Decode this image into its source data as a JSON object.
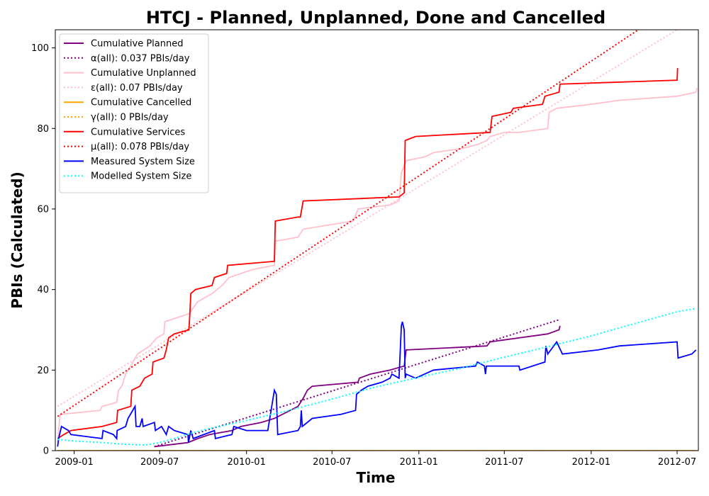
{
  "chart_data": {
    "type": "line",
    "title": "HTCJ - Planned, Unplanned, Done  and Cancelled",
    "xlabel": "Time",
    "ylabel": "PBIs (Calculated)",
    "xlim": [
      "2008-11-22",
      "2012-08-15"
    ],
    "ylim": [
      0,
      104.5
    ],
    "x_tick_labels": [
      "2009-01",
      "2009-07",
      "2010-01",
      "2010-07",
      "2011-01",
      "2011-07",
      "2012-01",
      "2012-07"
    ],
    "y_tick_labels": [
      "0",
      "20",
      "40",
      "60",
      "80",
      "100"
    ],
    "y_ticks": [
      0,
      20,
      40,
      60,
      80,
      100
    ],
    "grid": false,
    "legend_position": "upper-left",
    "series": [
      {
        "name": "Cumulative Planned",
        "color": "#800080",
        "style": "solid",
        "points": [
          [
            "2009-06-20",
            1
          ],
          [
            "2009-08-30",
            2
          ],
          [
            "2009-09-20",
            3
          ],
          [
            "2009-10-15",
            4
          ],
          [
            "2009-12-01",
            5
          ],
          [
            "2009-12-20",
            6
          ],
          [
            "2010-02-01",
            7
          ],
          [
            "2010-03-01",
            8
          ],
          [
            "2010-04-20",
            11
          ],
          [
            "2010-05-01",
            13
          ],
          [
            "2010-05-10",
            15
          ],
          [
            "2010-05-20",
            16
          ],
          [
            "2010-08-25",
            17
          ],
          [
            "2010-08-28",
            18
          ],
          [
            "2010-09-20",
            19
          ],
          [
            "2010-11-01",
            20
          ],
          [
            "2010-12-01",
            21
          ],
          [
            "2010-12-05",
            25
          ],
          [
            "2011-05-25",
            26
          ],
          [
            "2011-06-01",
            27
          ],
          [
            "2011-10-01",
            29
          ],
          [
            "2011-10-25",
            30
          ],
          [
            "2011-10-27",
            31
          ]
        ]
      },
      {
        "name": "α(all): 0.037 PBIs/day",
        "color": "#800080",
        "style": "dotted",
        "points": [
          [
            "2009-06-20",
            1
          ],
          [
            "2011-10-25",
            32.5
          ]
        ]
      },
      {
        "name": "Cumulative Unplanned",
        "color": "#ffc0cb",
        "style": "solid",
        "points": [
          [
            "2008-11-27",
            2
          ],
          [
            "2008-12-02",
            9
          ],
          [
            "2009-02-25",
            10
          ],
          [
            "2009-03-01",
            11
          ],
          [
            "2009-04-01",
            12
          ],
          [
            "2009-04-05",
            15
          ],
          [
            "2009-04-12",
            16
          ],
          [
            "2009-04-20",
            19
          ],
          [
            "2009-05-01",
            21
          ],
          [
            "2009-05-15",
            24
          ],
          [
            "2009-06-10",
            26
          ],
          [
            "2009-06-25",
            28
          ],
          [
            "2009-07-10",
            29
          ],
          [
            "2009-07-12",
            32
          ],
          [
            "2009-09-01",
            34
          ],
          [
            "2009-09-20",
            37
          ],
          [
            "2009-10-20",
            39
          ],
          [
            "2009-11-10",
            41
          ],
          [
            "2009-11-25",
            43
          ],
          [
            "2010-01-15",
            45
          ],
          [
            "2010-03-01",
            46
          ],
          [
            "2010-03-03",
            52
          ],
          [
            "2010-04-20",
            53
          ],
          [
            "2010-05-01",
            55
          ],
          [
            "2010-08-15",
            57
          ],
          [
            "2010-08-25",
            60
          ],
          [
            "2010-11-01",
            61
          ],
          [
            "2010-11-20",
            62
          ],
          [
            "2010-11-25",
            69
          ],
          [
            "2010-12-05",
            72
          ],
          [
            "2011-01-15",
            73
          ],
          [
            "2011-02-01",
            74
          ],
          [
            "2011-04-01",
            75
          ],
          [
            "2011-05-05",
            76
          ],
          [
            "2011-05-25",
            77
          ],
          [
            "2011-06-01",
            78
          ],
          [
            "2011-07-01",
            79
          ],
          [
            "2011-08-01",
            79
          ],
          [
            "2011-10-01",
            80
          ],
          [
            "2011-10-04",
            84
          ],
          [
            "2011-10-20",
            85
          ],
          [
            "2012-01-01",
            86
          ],
          [
            "2012-03-01",
            87
          ],
          [
            "2012-07-01",
            88
          ],
          [
            "2012-08-10",
            89
          ],
          [
            "2012-08-12",
            90
          ]
        ]
      },
      {
        "name": "ε(all): 0.07 PBIs/day",
        "color": "#ffc0cb",
        "style": "dotted",
        "points": [
          [
            "2008-11-27",
            11
          ],
          [
            "2012-07-01",
            104.5
          ]
        ]
      },
      {
        "name": "Cumulative Cancelled",
        "color": "#ffa500",
        "style": "solid",
        "points": [
          [
            "2008-11-27",
            0
          ],
          [
            "2012-08-12",
            0
          ]
        ]
      },
      {
        "name": "γ(all): 0 PBIs/day",
        "color": "#ffa500",
        "style": "dotted",
        "points": [
          [
            "2008-11-27",
            0
          ],
          [
            "2012-08-12",
            0
          ]
        ]
      },
      {
        "name": "Cumulative Services",
        "color": "#ff0000",
        "style": "solid",
        "points": [
          [
            "2008-11-27",
            3
          ],
          [
            "2008-12-10",
            4
          ],
          [
            "2008-12-25",
            5
          ],
          [
            "2009-03-01",
            6
          ],
          [
            "2009-04-01",
            7
          ],
          [
            "2009-04-03",
            10
          ],
          [
            "2009-05-01",
            11
          ],
          [
            "2009-05-03",
            15
          ],
          [
            "2009-05-20",
            16
          ],
          [
            "2009-05-30",
            18
          ],
          [
            "2009-06-15",
            19
          ],
          [
            "2009-06-17",
            22
          ],
          [
            "2009-07-10",
            23
          ],
          [
            "2009-07-15",
            25
          ],
          [
            "2009-07-20",
            28
          ],
          [
            "2009-08-01",
            29
          ],
          [
            "2009-09-01",
            30
          ],
          [
            "2009-09-03",
            34
          ],
          [
            "2009-09-05",
            39
          ],
          [
            "2009-09-15",
            40
          ],
          [
            "2009-10-20",
            41
          ],
          [
            "2009-10-25",
            43
          ],
          [
            "2009-11-20",
            44
          ],
          [
            "2009-11-22",
            46
          ],
          [
            "2010-03-01",
            47
          ],
          [
            "2010-03-03",
            57
          ],
          [
            "2010-04-20",
            58
          ],
          [
            "2010-04-25",
            58
          ],
          [
            "2010-05-01",
            62
          ],
          [
            "2010-11-20",
            63
          ],
          [
            "2010-12-01",
            64
          ],
          [
            "2010-12-03",
            77
          ],
          [
            "2010-12-25",
            78
          ],
          [
            "2011-06-01",
            79
          ],
          [
            "2011-06-05",
            83
          ],
          [
            "2011-07-15",
            84
          ],
          [
            "2011-07-20",
            85
          ],
          [
            "2011-09-20",
            86
          ],
          [
            "2011-09-25",
            88
          ],
          [
            "2011-10-25",
            89
          ],
          [
            "2011-10-27",
            91
          ],
          [
            "2012-07-01",
            92
          ],
          [
            "2012-07-02",
            95
          ]
        ]
      },
      {
        "name": "μ(all): 0.078 PBIs/day",
        "color": "#ff0000",
        "style": "dotted",
        "points": [
          [
            "2008-11-27",
            8.5
          ],
          [
            "2012-04-10",
            104.5
          ]
        ]
      },
      {
        "name": "Measured System Size",
        "color": "#0000ff",
        "style": "solid",
        "points": [
          [
            "2008-11-27",
            1
          ],
          [
            "2008-11-29",
            3
          ],
          [
            "2008-12-05",
            6
          ],
          [
            "2008-12-20",
            5
          ],
          [
            "2008-12-25",
            4
          ],
          [
            "2009-03-01",
            3
          ],
          [
            "2009-03-03",
            5
          ],
          [
            "2009-03-25",
            4
          ],
          [
            "2009-04-01",
            3
          ],
          [
            "2009-04-02",
            5
          ],
          [
            "2009-04-20",
            6
          ],
          [
            "2009-04-25",
            8
          ],
          [
            "2009-05-10",
            11
          ],
          [
            "2009-05-12",
            6
          ],
          [
            "2009-05-20",
            6
          ],
          [
            "2009-05-25",
            8
          ],
          [
            "2009-05-27",
            6
          ],
          [
            "2009-06-20",
            7
          ],
          [
            "2009-06-22",
            5
          ],
          [
            "2009-07-05",
            6
          ],
          [
            "2009-07-10",
            5
          ],
          [
            "2009-07-15",
            4
          ],
          [
            "2009-07-20",
            6
          ],
          [
            "2009-08-01",
            5
          ],
          [
            "2009-08-30",
            4
          ],
          [
            "2009-08-31",
            2
          ],
          [
            "2009-09-05",
            5
          ],
          [
            "2009-09-10",
            3
          ],
          [
            "2009-10-25",
            5
          ],
          [
            "2009-10-27",
            3
          ],
          [
            "2009-12-01",
            4
          ],
          [
            "2009-12-05",
            6
          ],
          [
            "2010-01-01",
            5
          ],
          [
            "2010-02-15",
            5
          ],
          [
            "2010-03-01",
            15
          ],
          [
            "2010-03-05",
            14
          ],
          [
            "2010-03-08",
            4
          ],
          [
            "2010-04-20",
            5
          ],
          [
            "2010-04-25",
            6
          ],
          [
            "2010-04-27",
            10
          ],
          [
            "2010-04-29",
            6
          ],
          [
            "2010-05-20",
            8
          ],
          [
            "2010-07-20",
            9
          ],
          [
            "2010-08-20",
            10
          ],
          [
            "2010-08-22",
            14
          ],
          [
            "2010-09-01",
            15
          ],
          [
            "2010-09-15",
            16
          ],
          [
            "2010-10-15",
            17
          ],
          [
            "2010-11-01",
            18
          ],
          [
            "2010-11-05",
            19
          ],
          [
            "2010-11-20",
            18
          ],
          [
            "2010-11-25",
            31
          ],
          [
            "2010-11-27",
            32
          ],
          [
            "2010-12-01",
            30
          ],
          [
            "2010-12-03",
            18
          ],
          [
            "2010-12-05",
            19
          ],
          [
            "2010-12-25",
            18
          ],
          [
            "2011-02-01",
            20
          ],
          [
            "2011-05-01",
            21
          ],
          [
            "2011-05-05",
            22
          ],
          [
            "2011-05-20",
            21
          ],
          [
            "2011-05-22",
            19
          ],
          [
            "2011-05-24",
            21
          ],
          [
            "2011-08-01",
            21
          ],
          [
            "2011-08-03",
            20
          ],
          [
            "2011-09-25",
            22
          ],
          [
            "2011-09-27",
            26
          ],
          [
            "2011-10-01",
            24
          ],
          [
            "2011-10-20",
            27
          ],
          [
            "2011-11-01",
            24
          ],
          [
            "2012-01-15",
            25
          ],
          [
            "2012-03-01",
            26
          ],
          [
            "2012-07-01",
            27
          ],
          [
            "2012-07-03",
            23
          ],
          [
            "2012-08-01",
            24
          ],
          [
            "2012-08-10",
            25
          ]
        ]
      },
      {
        "name": "Modelled System Size",
        "color": "#00ffff",
        "style": "dotted",
        "points": [
          [
            "2008-11-27",
            2.8
          ],
          [
            "2009-01-01",
            2.4
          ],
          [
            "2009-03-01",
            2.0
          ],
          [
            "2009-04-15",
            1.6
          ],
          [
            "2009-06-01",
            1.4
          ],
          [
            "2009-07-01",
            2.0
          ],
          [
            "2009-08-01",
            3.0
          ],
          [
            "2009-09-01",
            4.2
          ],
          [
            "2009-10-15",
            5.5
          ],
          [
            "2010-01-01",
            7.5
          ],
          [
            "2010-04-01",
            10.0
          ],
          [
            "2010-07-01",
            12.8
          ],
          [
            "2010-10-01",
            15.8
          ],
          [
            "2011-01-01",
            18.2
          ],
          [
            "2011-04-01",
            20.5
          ],
          [
            "2011-07-01",
            23.2
          ],
          [
            "2011-10-01",
            25.8
          ],
          [
            "2012-01-01",
            28.5
          ],
          [
            "2012-04-01",
            31.5
          ],
          [
            "2012-07-01",
            34.5
          ],
          [
            "2012-08-10",
            35.3
          ]
        ]
      }
    ]
  }
}
